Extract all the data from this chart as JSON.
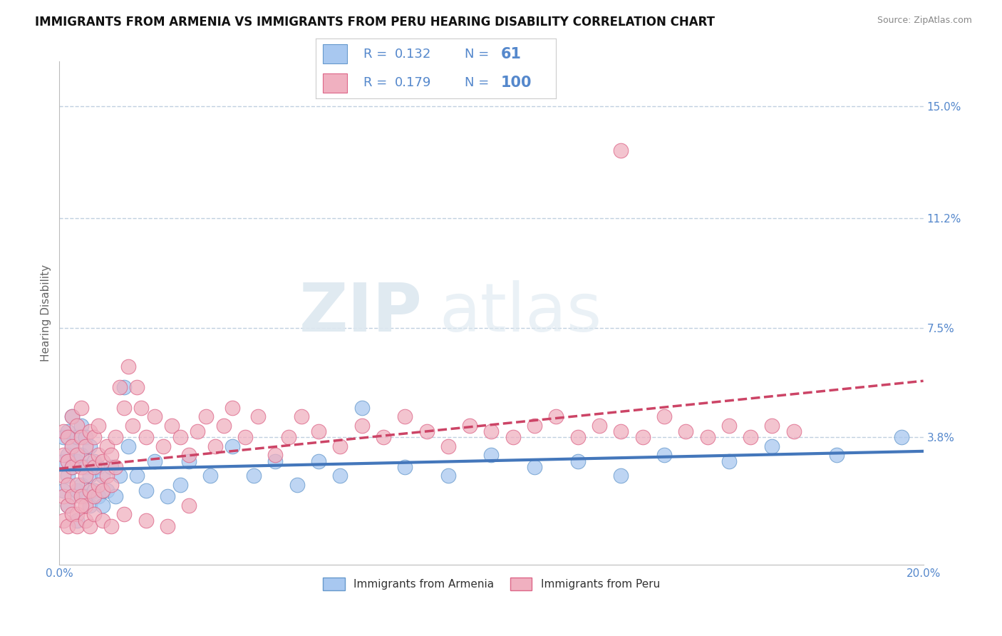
{
  "title": "IMMIGRANTS FROM ARMENIA VS IMMIGRANTS FROM PERU HEARING DISABILITY CORRELATION CHART",
  "source": "Source: ZipAtlas.com",
  "ylabel": "Hearing Disability",
  "xlim": [
    0.0,
    0.2
  ],
  "ylim": [
    -0.005,
    0.165
  ],
  "yticks": [
    0.038,
    0.075,
    0.112,
    0.15
  ],
  "ytick_labels": [
    "3.8%",
    "7.5%",
    "11.2%",
    "15.0%"
  ],
  "xticks": [
    0.0,
    0.04,
    0.08,
    0.12,
    0.16,
    0.2
  ],
  "xtick_labels": [
    "0.0%",
    "",
    "",
    "",
    "",
    "20.0%"
  ],
  "title_fontsize": 12,
  "label_fontsize": 11,
  "tick_fontsize": 11,
  "watermark_zip": "ZIP",
  "watermark_atlas": "atlas",
  "series": [
    {
      "name": "Immigrants from Armenia",
      "R": "0.132",
      "N": "61",
      "color": "#a8c8f0",
      "edge_color": "#6699cc",
      "trend_color": "#4477bb",
      "trend_style": "-",
      "x": [
        0.001,
        0.001,
        0.001,
        0.002,
        0.002,
        0.002,
        0.002,
        0.003,
        0.003,
        0.003,
        0.003,
        0.004,
        0.004,
        0.004,
        0.004,
        0.005,
        0.005,
        0.005,
        0.006,
        0.006,
        0.006,
        0.007,
        0.007,
        0.007,
        0.008,
        0.008,
        0.009,
        0.009,
        0.01,
        0.01,
        0.011,
        0.012,
        0.013,
        0.014,
        0.015,
        0.016,
        0.018,
        0.02,
        0.022,
        0.025,
        0.028,
        0.03,
        0.035,
        0.04,
        0.045,
        0.05,
        0.055,
        0.06,
        0.065,
        0.07,
        0.08,
        0.09,
        0.1,
        0.11,
        0.12,
        0.13,
        0.14,
        0.155,
        0.165,
        0.18,
        0.195
      ],
      "y": [
        0.02,
        0.03,
        0.038,
        0.015,
        0.025,
        0.032,
        0.04,
        0.018,
        0.028,
        0.035,
        0.045,
        0.02,
        0.03,
        0.038,
        0.01,
        0.022,
        0.032,
        0.042,
        0.018,
        0.028,
        0.038,
        0.015,
        0.025,
        0.035,
        0.02,
        0.03,
        0.018,
        0.028,
        0.015,
        0.025,
        0.02,
        0.028,
        0.018,
        0.025,
        0.055,
        0.035,
        0.025,
        0.02,
        0.03,
        0.018,
        0.022,
        0.03,
        0.025,
        0.035,
        0.025,
        0.03,
        0.022,
        0.03,
        0.025,
        0.048,
        0.028,
        0.025,
        0.032,
        0.028,
        0.03,
        0.025,
        0.032,
        0.03,
        0.035,
        0.032,
        0.038
      ]
    },
    {
      "name": "Immigrants from Peru",
      "R": "0.179",
      "N": "100",
      "color": "#f0b0c0",
      "edge_color": "#dd6688",
      "trend_color": "#cc4466",
      "trend_style": "--",
      "x": [
        0.001,
        0.001,
        0.001,
        0.001,
        0.002,
        0.002,
        0.002,
        0.002,
        0.003,
        0.003,
        0.003,
        0.003,
        0.004,
        0.004,
        0.004,
        0.004,
        0.005,
        0.005,
        0.005,
        0.005,
        0.006,
        0.006,
        0.006,
        0.007,
        0.007,
        0.007,
        0.008,
        0.008,
        0.008,
        0.009,
        0.009,
        0.009,
        0.01,
        0.01,
        0.011,
        0.011,
        0.012,
        0.012,
        0.013,
        0.013,
        0.014,
        0.015,
        0.016,
        0.017,
        0.018,
        0.019,
        0.02,
        0.022,
        0.024,
        0.026,
        0.028,
        0.03,
        0.032,
        0.034,
        0.036,
        0.038,
        0.04,
        0.043,
        0.046,
        0.05,
        0.053,
        0.056,
        0.06,
        0.065,
        0.07,
        0.075,
        0.08,
        0.085,
        0.09,
        0.095,
        0.1,
        0.105,
        0.11,
        0.115,
        0.12,
        0.125,
        0.13,
        0.135,
        0.14,
        0.145,
        0.15,
        0.155,
        0.16,
        0.165,
        0.17,
        0.001,
        0.002,
        0.003,
        0.004,
        0.005,
        0.006,
        0.007,
        0.008,
        0.01,
        0.012,
        0.015,
        0.02,
        0.025,
        0.03,
        0.13
      ],
      "y": [
        0.018,
        0.025,
        0.032,
        0.04,
        0.015,
        0.022,
        0.03,
        0.038,
        0.018,
        0.028,
        0.035,
        0.045,
        0.012,
        0.022,
        0.032,
        0.042,
        0.018,
        0.028,
        0.038,
        0.048,
        0.015,
        0.025,
        0.035,
        0.02,
        0.03,
        0.04,
        0.018,
        0.028,
        0.038,
        0.022,
        0.032,
        0.042,
        0.02,
        0.03,
        0.025,
        0.035,
        0.022,
        0.032,
        0.028,
        0.038,
        0.055,
        0.048,
        0.062,
        0.042,
        0.055,
        0.048,
        0.038,
        0.045,
        0.035,
        0.042,
        0.038,
        0.032,
        0.04,
        0.045,
        0.035,
        0.042,
        0.048,
        0.038,
        0.045,
        0.032,
        0.038,
        0.045,
        0.04,
        0.035,
        0.042,
        0.038,
        0.045,
        0.04,
        0.035,
        0.042,
        0.04,
        0.038,
        0.042,
        0.045,
        0.038,
        0.042,
        0.04,
        0.038,
        0.045,
        0.04,
        0.038,
        0.042,
        0.038,
        0.042,
        0.04,
        0.01,
        0.008,
        0.012,
        0.008,
        0.015,
        0.01,
        0.008,
        0.012,
        0.01,
        0.008,
        0.012,
        0.01,
        0.008,
        0.015,
        0.135
      ]
    }
  ],
  "grid_color": "#c0d0e0",
  "axis_color": "#bbbbbb",
  "title_color": "#111111",
  "tick_color": "#5588cc",
  "background_color": "#ffffff"
}
